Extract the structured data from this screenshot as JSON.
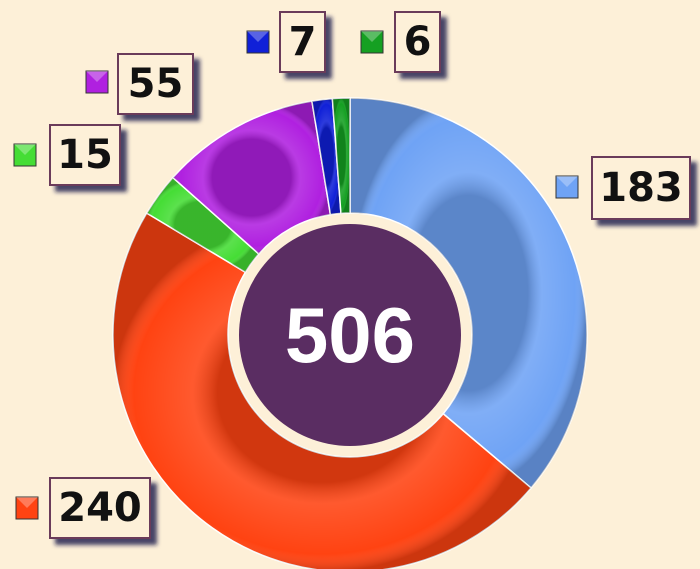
{
  "chart_data": {
    "type": "donut",
    "total": 506,
    "series": [
      {
        "name": null,
        "values": [
          183,
          240,
          15,
          55,
          7,
          6
        ],
        "colors": [
          "#6fa3f5",
          "#ff4312",
          "#45dd35",
          "#b020e0",
          "#1020d8",
          "#15a022"
        ]
      }
    ],
    "center_color": "#5a2d62"
  }
}
